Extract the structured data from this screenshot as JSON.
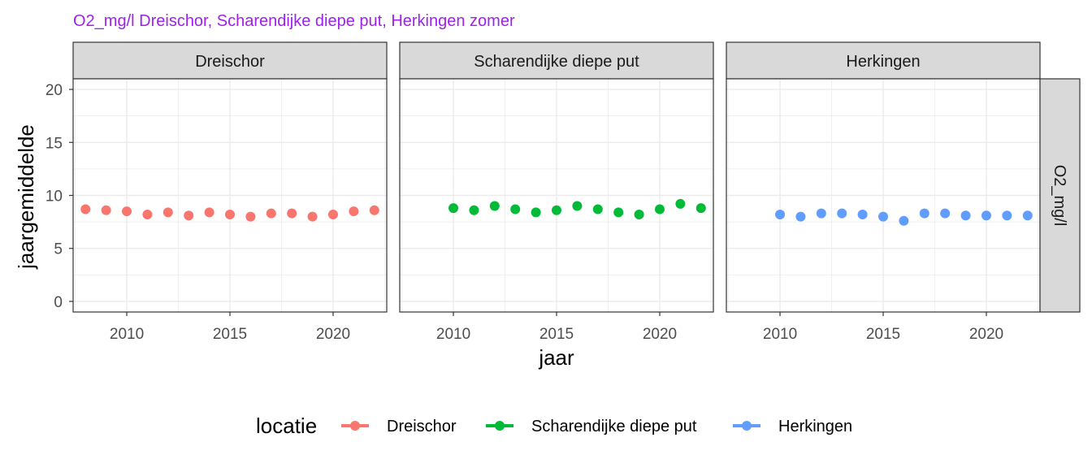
{
  "colors": {
    "title": "#A020F0",
    "Dreischor": "#F8766D",
    "Scharendijke diepe put": "#00BA38",
    "Herkingen": "#619CFF",
    "strip_fill": "#D9D9D9",
    "grid": "#EBEBEB",
    "panel_border": "#333333"
  },
  "chart_data": {
    "type": "scatter",
    "title": "O2_mg/l Dreischor, Scharendijke diepe put, Herkingen zomer",
    "xlabel": "jaar",
    "ylabel": "jaargemiddelde",
    "facet_row_label": "O2_mg/l",
    "xlim": [
      2007.4,
      2022.6
    ],
    "ylim": [
      -1,
      21
    ],
    "x_ticks": [
      2010,
      2015,
      2020
    ],
    "y_ticks": [
      0,
      5,
      10,
      15,
      20
    ],
    "grid": true,
    "legend": {
      "title": "locatie",
      "position": "bottom",
      "entries": [
        "Dreischor",
        "Scharendijke diepe put",
        "Herkingen"
      ]
    },
    "panels": [
      {
        "name": "Dreischor",
        "x": [
          2008,
          2009,
          2010,
          2011,
          2012,
          2013,
          2014,
          2015,
          2016,
          2017,
          2018,
          2019,
          2020,
          2021,
          2022
        ],
        "y": [
          8.7,
          8.6,
          8.5,
          8.2,
          8.4,
          8.1,
          8.4,
          8.2,
          8.0,
          8.3,
          8.3,
          8.0,
          8.2,
          8.5,
          8.6
        ]
      },
      {
        "name": "Scharendijke diepe put",
        "x": [
          2010,
          2011,
          2012,
          2013,
          2014,
          2015,
          2016,
          2017,
          2018,
          2019,
          2020,
          2021,
          2022
        ],
        "y": [
          8.8,
          8.6,
          9.0,
          8.7,
          8.4,
          8.6,
          9.0,
          8.7,
          8.4,
          8.2,
          8.7,
          9.2,
          8.8
        ]
      },
      {
        "name": "Herkingen",
        "x": [
          2010,
          2011,
          2012,
          2013,
          2014,
          2015,
          2016,
          2017,
          2018,
          2019,
          2020,
          2021,
          2022
        ],
        "y": [
          8.2,
          8.0,
          8.3,
          8.3,
          8.2,
          8.0,
          7.6,
          8.3,
          8.3,
          8.1,
          8.1,
          8.1,
          8.1
        ]
      }
    ]
  }
}
